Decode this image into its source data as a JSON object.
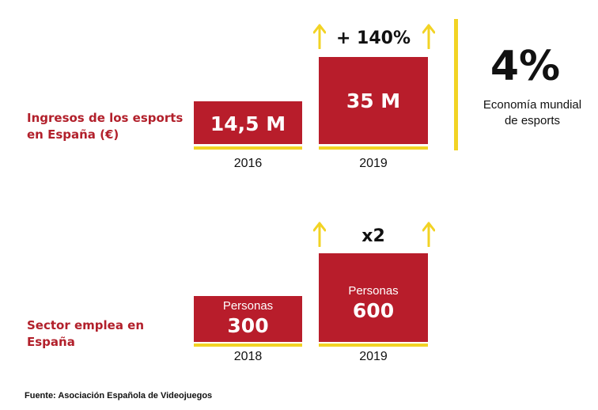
{
  "chart_data": [
    {
      "type": "bar",
      "label": "Ingresos de los esports en España (€)",
      "categories": [
        "2016",
        "2019"
      ],
      "values": [
        14.5,
        35
      ],
      "value_labels": [
        "14,5 M",
        "35 M"
      ],
      "growth_label": "+ 140%",
      "side_stat": {
        "value": "4%",
        "text_line1": "Economía mundial",
        "text_line2": "de esports"
      }
    },
    {
      "type": "bar",
      "label": "Sector emplea en España",
      "categories": [
        "2018",
        "2019"
      ],
      "values": [
        300,
        600
      ],
      "unit_label": "Personas",
      "value_labels": [
        "300",
        "600"
      ],
      "growth_label": "x2"
    }
  ],
  "labels": {
    "revenue_line1": "Ingresos de los esports",
    "revenue_line2": "en España (€)",
    "jobs_line1": "Sector emplea en",
    "jobs_line2": "España"
  },
  "source": "Fuente: Asociación Española de Videojuegos",
  "colors": {
    "bar": "#b81d2b",
    "label": "#b2202b",
    "accent": "#f2d324"
  }
}
